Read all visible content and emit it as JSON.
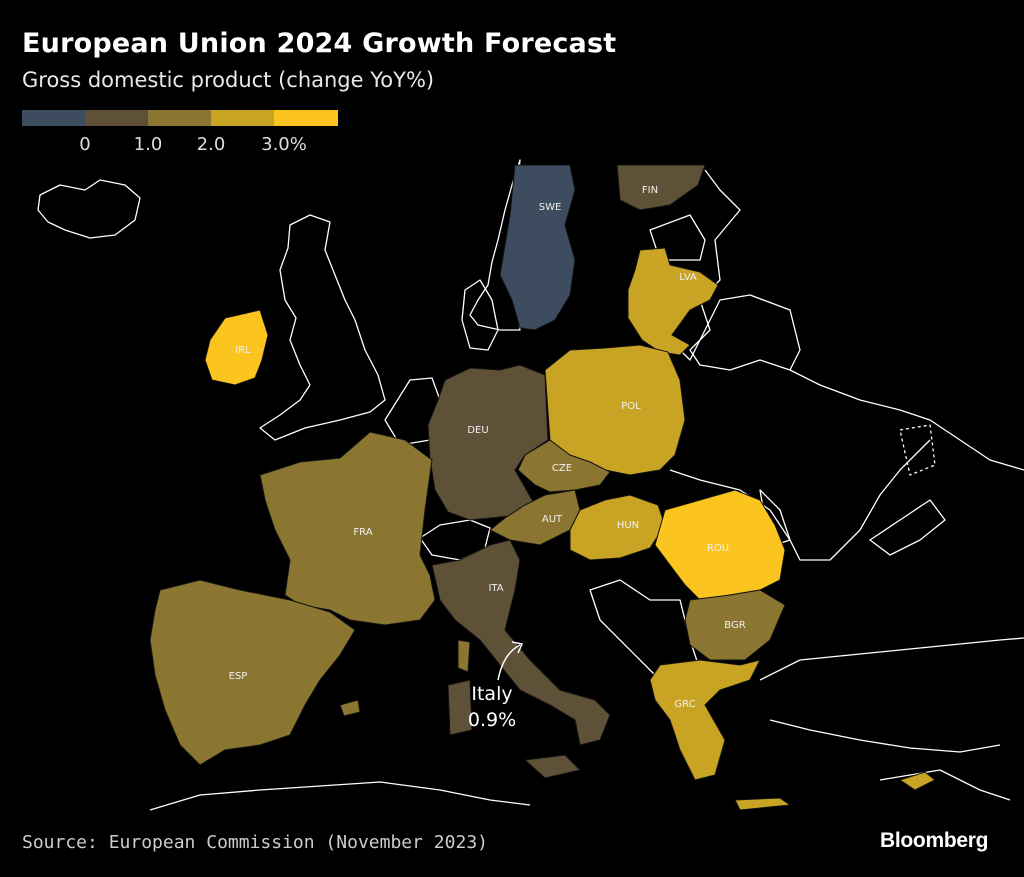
{
  "header": {
    "title": "European Union 2024 Growth Forecast",
    "subtitle": "Gross domestic product (change YoY%)"
  },
  "legend": {
    "colors": [
      "#3d4c5e",
      "#5e5137",
      "#8a7531",
      "#c9a324",
      "#fcc41e"
    ],
    "ticks": [
      "0",
      "1.0",
      "2.0",
      "3.0%"
    ]
  },
  "countries": [
    {
      "code": "SWE",
      "color": "#3d4c5e"
    },
    {
      "code": "FIN",
      "color": "#5e5137"
    },
    {
      "code": "LVA",
      "color": "#c9a324"
    },
    {
      "code": "IRL",
      "color": "#fcc41e"
    },
    {
      "code": "DEU",
      "color": "#5e5137"
    },
    {
      "code": "POL",
      "color": "#c9a324"
    },
    {
      "code": "CZE",
      "color": "#8a7531"
    },
    {
      "code": "AUT",
      "color": "#8a7531"
    },
    {
      "code": "HUN",
      "color": "#c9a324"
    },
    {
      "code": "FRA",
      "color": "#8a7531"
    },
    {
      "code": "ROU",
      "color": "#fcc41e"
    },
    {
      "code": "ITA",
      "color": "#5e5137"
    },
    {
      "code": "BGR",
      "color": "#8a7531"
    },
    {
      "code": "ESP",
      "color": "#8a7531"
    },
    {
      "code": "GRC",
      "color": "#c9a324"
    }
  ],
  "annotation": {
    "line1": "Italy",
    "line2": "0.9%"
  },
  "footer": {
    "source": "Source: European Commission (November 2023)",
    "brand": "Bloomberg"
  }
}
